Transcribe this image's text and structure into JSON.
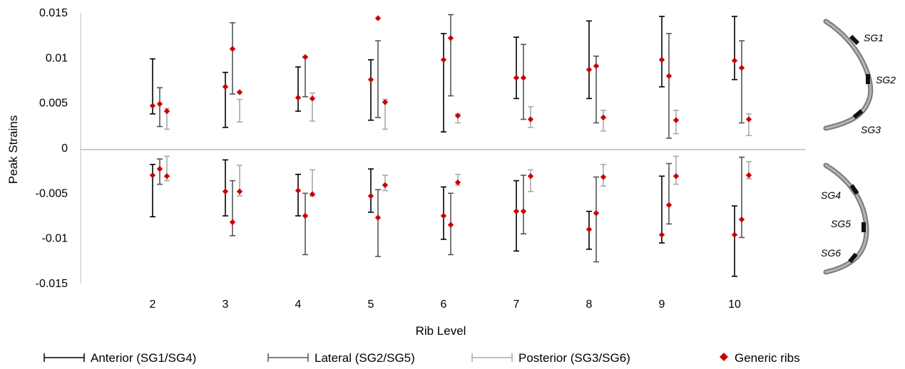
{
  "chart_data": {
    "type": "scatter",
    "xlabel": "Rib Level",
    "ylabel": "Peak Strains",
    "ylim": [
      -0.015,
      0.015
    ],
    "yticks": [
      {
        "value": 0.015,
        "label": "0.015"
      },
      {
        "value": 0.01,
        "label": "0.01"
      },
      {
        "value": 0.005,
        "label": "0.005"
      },
      {
        "value": 0,
        "label": "0"
      },
      {
        "value": -0.005,
        "label": "-0.005"
      },
      {
        "value": -0.01,
        "label": "-0.01"
      },
      {
        "value": -0.015,
        "label": "-0.015"
      }
    ],
    "categories": [
      "2",
      "3",
      "4",
      "5",
      "6",
      "7",
      "8",
      "9",
      "10"
    ],
    "legend_position": "bottom",
    "series": [
      {
        "name": "Anterior (SG1/SG4)",
        "color": "#000000",
        "positive": [
          [
            0.0038,
            0.0099
          ],
          [
            0.0023,
            0.0084
          ],
          [
            0.0041,
            0.009
          ],
          [
            0.0031,
            0.0098
          ],
          [
            0.0018,
            0.0127
          ],
          [
            0.0055,
            0.0123
          ],
          [
            0.0055,
            0.0141
          ],
          [
            0.0068,
            0.0146
          ],
          [
            0.0076,
            0.0146
          ]
        ],
        "negative": [
          [
            -0.0076,
            -0.0018
          ],
          [
            -0.0075,
            -0.0013
          ],
          [
            -0.0075,
            -0.0029
          ],
          [
            -0.0071,
            -0.0023
          ],
          [
            -0.0101,
            -0.0043
          ],
          [
            -0.0114,
            -0.0036
          ],
          [
            -0.0112,
            -0.007
          ],
          [
            -0.0105,
            -0.0031
          ],
          [
            -0.0142,
            -0.0064
          ]
        ]
      },
      {
        "name": "Lateral (SG2/SG5)",
        "color": "#555555",
        "positive": [
          [
            0.0024,
            0.0067
          ],
          [
            0.006,
            0.0139
          ],
          [
            0.0057,
            0.0101
          ],
          [
            0.0034,
            0.0119
          ],
          [
            0.0058,
            0.0148
          ],
          [
            0.0032,
            0.0115
          ],
          [
            0.0028,
            0.0102
          ],
          [
            0.0011,
            0.0127
          ],
          [
            0.0028,
            0.0119
          ]
        ],
        "negative": [
          [
            -0.004,
            -0.0012
          ],
          [
            -0.0097,
            -0.0036
          ],
          [
            -0.0118,
            -0.005
          ],
          [
            -0.012,
            -0.0046
          ],
          [
            -0.0118,
            -0.005
          ],
          [
            -0.0095,
            -0.003
          ],
          [
            -0.0126,
            -0.0032
          ],
          [
            -0.0084,
            -0.0017
          ],
          [
            -0.0099,
            -0.001
          ]
        ]
      },
      {
        "name": "Posterior (SG3/SG6)",
        "color": "#aaaaaa",
        "positive": [
          [
            0.0021,
            0.0044
          ],
          [
            0.0029,
            0.0054
          ],
          [
            0.003,
            0.0061
          ],
          [
            0.0021,
            0.0054
          ],
          [
            0.0028,
            0.0038
          ],
          [
            0.0023,
            0.0046
          ],
          [
            0.0019,
            0.0042
          ],
          [
            0.0016,
            0.0042
          ],
          [
            0.0014,
            0.0038
          ]
        ],
        "negative": [
          [
            -0.0036,
            -0.0009
          ],
          [
            -0.0053,
            -0.0019
          ],
          [
            -0.0053,
            -0.0024
          ],
          [
            -0.0047,
            -0.003
          ],
          [
            -0.0041,
            -0.0029
          ],
          [
            -0.0048,
            -0.0024
          ],
          [
            -0.0042,
            -0.0018
          ],
          [
            -0.004,
            -0.0009
          ],
          [
            -0.0034,
            -0.0015
          ]
        ]
      }
    ],
    "generic_ribs": {
      "name": "Generic ribs",
      "color": "#cc0000",
      "points": [
        [
          0.0047,
          0.0049,
          0.0041,
          -0.003,
          -0.0023,
          -0.0031
        ],
        [
          0.0068,
          0.011,
          0.0062,
          -0.0048,
          -0.0082,
          -0.0048
        ],
        [
          0.0056,
          0.0101,
          0.0055,
          -0.0047,
          -0.0075,
          -0.0051
        ],
        [
          0.0076,
          0.0144,
          0.0051,
          -0.0053,
          -0.0077,
          -0.0041
        ],
        [
          0.0098,
          0.0122,
          0.0036,
          -0.0075,
          -0.0085,
          -0.0038
        ],
        [
          0.0078,
          0.0078,
          0.0032,
          -0.007,
          -0.007,
          -0.0031
        ],
        [
          0.0087,
          0.0091,
          0.0034,
          -0.009,
          -0.0072,
          -0.0032
        ],
        [
          0.0098,
          0.008,
          0.0031,
          -0.0096,
          -0.0063,
          -0.0031
        ],
        [
          0.0097,
          0.0089,
          0.0032,
          -0.0096,
          -0.0079,
          -0.003
        ]
      ]
    }
  },
  "diagrams": {
    "top_labels": [
      "SG1",
      "SG2",
      "SG3"
    ],
    "bottom_labels": [
      "SG4",
      "SG5",
      "SG6"
    ]
  }
}
